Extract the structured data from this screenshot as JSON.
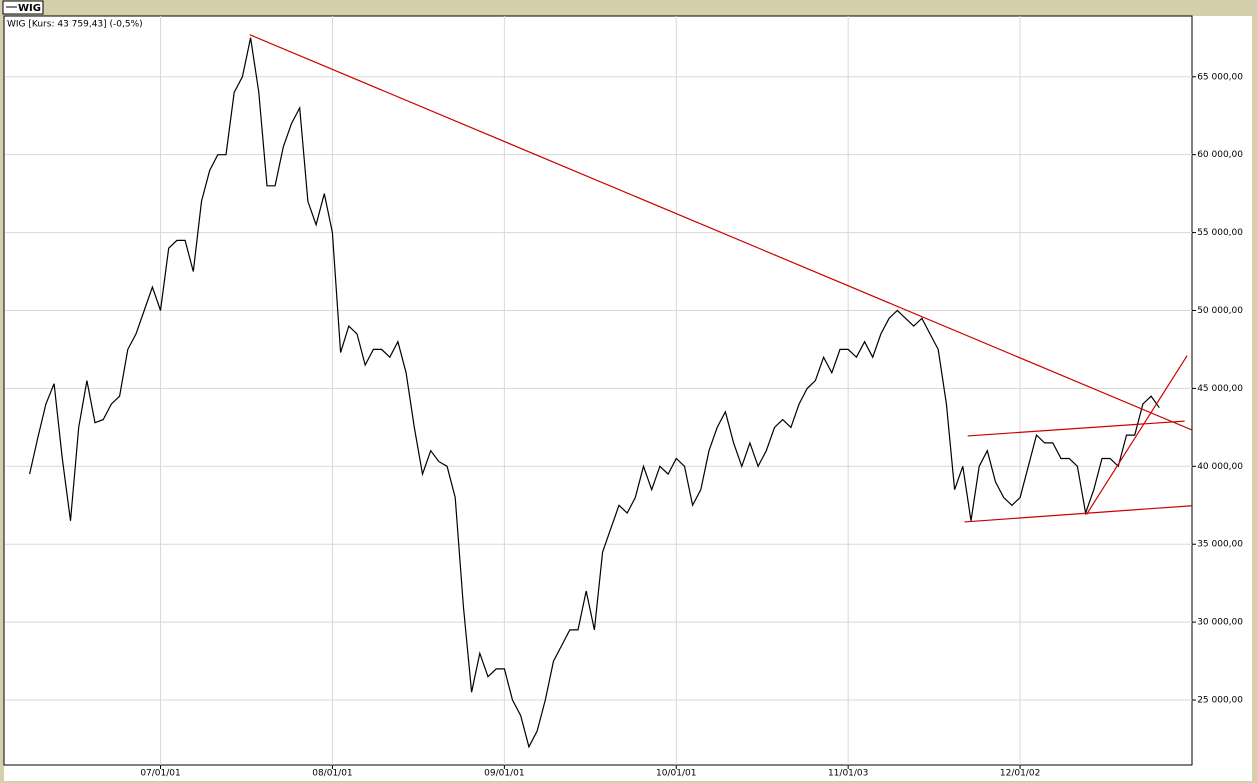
{
  "chart_data": {
    "type": "line",
    "legend": "WIG",
    "subtitle": "WIG [Kurs: 43 759,43] (-0,5%)",
    "series": [
      {
        "name": "WIG",
        "color": "#000000",
        "x": [
          3,
          4,
          5,
          6,
          7,
          8,
          9,
          10,
          11,
          12,
          13,
          14,
          15,
          16,
          17,
          18,
          19,
          20,
          21,
          22,
          23,
          24,
          25,
          26,
          27,
          28,
          29,
          30,
          31,
          32,
          33,
          34,
          35,
          36,
          37,
          38,
          39,
          40,
          41,
          42,
          43,
          44,
          45,
          46,
          47,
          48,
          49,
          50,
          51,
          52,
          53,
          54,
          55,
          56,
          57,
          58,
          59,
          60,
          61,
          62,
          63,
          64,
          65,
          66,
          67,
          68,
          69,
          70,
          71,
          72,
          73,
          74,
          75,
          76,
          77,
          78,
          79,
          80,
          81,
          82,
          83,
          84,
          85,
          86,
          87,
          88,
          89,
          90,
          91,
          92,
          93,
          94,
          95,
          96,
          97,
          98,
          99,
          100,
          101,
          102,
          103,
          104,
          105,
          106,
          107,
          108,
          109,
          110,
          111,
          112,
          113,
          114,
          115,
          116,
          117,
          118,
          119,
          120,
          121,
          122,
          123,
          124,
          125,
          126,
          127,
          128,
          129,
          130,
          131,
          132,
          133,
          134,
          135,
          136,
          137,
          138,
          139,
          140,
          141
        ],
        "values": [
          39500,
          41800,
          44000,
          45300,
          40500,
          36500,
          42500,
          45500,
          42800,
          43000,
          44000,
          44500,
          47500,
          48500,
          50000,
          51500,
          50000,
          54000,
          54500,
          54500,
          52500,
          57000,
          59000,
          60000,
          60000,
          64000,
          65000,
          67500,
          64000,
          58000,
          58000,
          60500,
          62000,
          63000,
          57000,
          55500,
          57500,
          55000,
          47300,
          49000,
          48500,
          46500,
          47500,
          47500,
          47000,
          48000,
          46000,
          42500,
          39500,
          41000,
          40300,
          40000,
          38000,
          31000,
          25500,
          28000,
          26500,
          27000,
          27000,
          25000,
          24000,
          22000,
          23000,
          25000,
          27500,
          28500,
          29500,
          29500,
          32000,
          29500,
          34500,
          36000,
          37500,
          37000,
          38000,
          40000,
          38500,
          40000,
          39500,
          40500,
          40000,
          37500,
          38500,
          41000,
          42500,
          43500,
          41500,
          40000,
          41500,
          40000,
          41000,
          42500,
          43000,
          42500,
          44000,
          45000,
          45500,
          47000,
          46000,
          47500,
          47500,
          47000,
          48000,
          47000,
          48500,
          49500,
          50000,
          49500,
          49000,
          49500,
          48500,
          47500,
          44000,
          38500,
          40000,
          36500,
          40000,
          41000,
          39000,
          38000,
          37500,
          38000,
          40000,
          42000,
          41500,
          41500,
          40500,
          40500,
          40000,
          37000,
          38500,
          40500,
          40500,
          40000,
          42000,
          42000,
          44000,
          44500,
          43759.43
        ]
      }
    ],
    "trendlines": [
      {
        "color": "#cc0000",
        "x": [
          29.9,
          150.8
        ],
        "y": [
          67700,
          41050
        ]
      },
      {
        "color": "#cc0000",
        "x": [
          117.6,
          144.1
        ],
        "y": [
          41950,
          42900
        ]
      },
      {
        "color": "#cc0000",
        "x": [
          117.2,
          149.8
        ],
        "y": [
          36430,
          37650
        ]
      },
      {
        "color": "#cc0000",
        "x": [
          132.1,
          144.4
        ],
        "y": [
          36900,
          47100
        ]
      }
    ],
    "xlim": [
      0,
      145
    ],
    "ylim": [
      20830,
      68900
    ],
    "xticks": [
      {
        "value": 19,
        "label": "07/01/01"
      },
      {
        "value": 40,
        "label": "08/01/01"
      },
      {
        "value": 61,
        "label": "09/01/01"
      },
      {
        "value": 82,
        "label": "10/01/01"
      },
      {
        "value": 103,
        "label": "11/01/03"
      },
      {
        "value": 124,
        "label": "12/01/02"
      }
    ],
    "yticks": [
      {
        "value": 25000,
        "label": "25 000,00"
      },
      {
        "value": 30000,
        "label": "30 000,00"
      },
      {
        "value": 35000,
        "label": "35 000,00"
      },
      {
        "value": 40000,
        "label": "40 000,00"
      },
      {
        "value": 45000,
        "label": "45 000,00"
      },
      {
        "value": 50000,
        "label": "50 000,00"
      },
      {
        "value": 55000,
        "label": "55 000,00"
      },
      {
        "value": 60000,
        "label": "60 000,00"
      },
      {
        "value": 65000,
        "label": "65 000,00"
      }
    ],
    "grid": true
  }
}
